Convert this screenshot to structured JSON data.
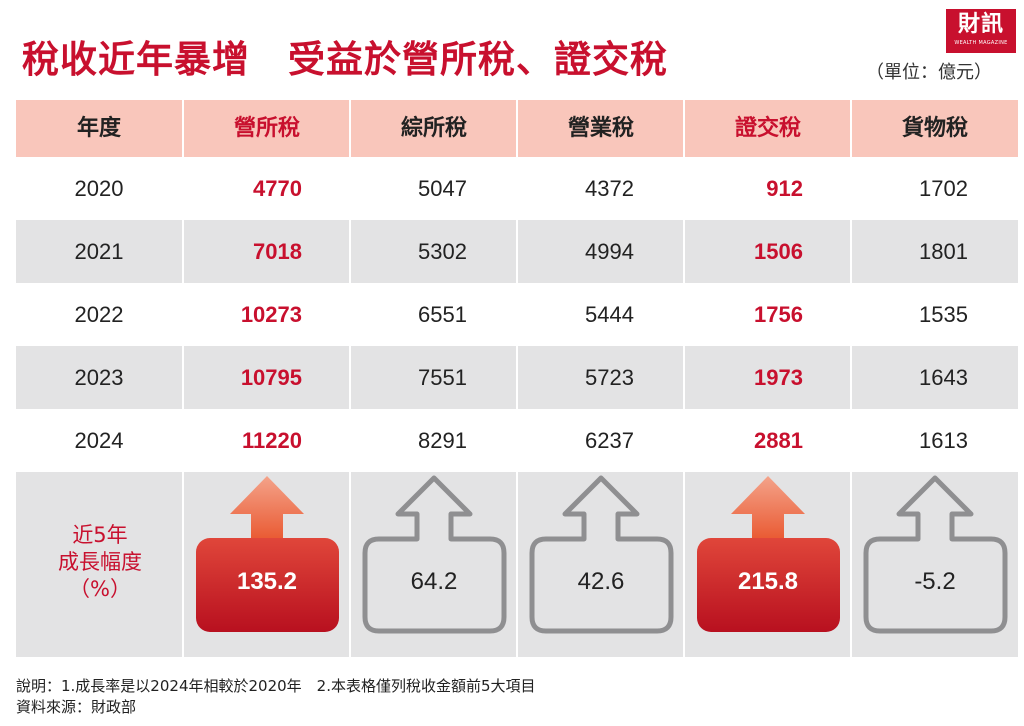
{
  "title_part1": "稅收近年暴增",
  "title_part2": "受益於營所稅、證交稅",
  "unit": "（單位：億元）",
  "logo": {
    "main": "財訊",
    "sub": "WEALTH MAGAZINE"
  },
  "colors": {
    "accent": "#c8102e",
    "header_bg": "#f9c6bb",
    "row_grey": "#e3e3e4"
  },
  "header": [
    "年度",
    "營所稅",
    "綜所稅",
    "營業稅",
    "證交稅",
    "貨物稅"
  ],
  "rows": [
    {
      "year": "2020",
      "v": [
        "4770",
        "5047",
        "4372",
        "912",
        "1702"
      ]
    },
    {
      "year": "2021",
      "v": [
        "7018",
        "5302",
        "4994",
        "1506",
        "1801"
      ]
    },
    {
      "year": "2022",
      "v": [
        "10273",
        "6551",
        "5444",
        "1756",
        "1535"
      ]
    },
    {
      "year": "2023",
      "v": [
        "10795",
        "7551",
        "5723",
        "1973",
        "1643"
      ]
    },
    {
      "year": "2024",
      "v": [
        "11220",
        "8291",
        "6237",
        "2881",
        "1613"
      ]
    }
  ],
  "growth_label": [
    "近5年",
    "成長幅度",
    "（%）"
  ],
  "growth": [
    "135.2",
    "64.2",
    "42.6",
    "215.8",
    "-5.2"
  ],
  "notes": [
    "說明：1.成長率是以2024年相較於2020年　2.本表格僅列稅收金額前5大項目",
    "資料來源：財政部"
  ],
  "chart_data": {
    "type": "table",
    "title": "稅收近年暴增　受益於營所稅、證交稅",
    "unit": "（單位：億元）",
    "columns": [
      "年度",
      "營所稅",
      "綜所稅",
      "營業稅",
      "證交稅",
      "貨物稅"
    ],
    "x": [
      2020,
      2021,
      2022,
      2023,
      2024
    ],
    "series": [
      {
        "name": "營所稅",
        "values": [
          4770,
          7018,
          10273,
          10795,
          11220
        ]
      },
      {
        "name": "綜所稅",
        "values": [
          5047,
          5302,
          6551,
          7551,
          8291
        ]
      },
      {
        "name": "營業稅",
        "values": [
          4372,
          4994,
          5444,
          5723,
          6237
        ]
      },
      {
        "name": "證交稅",
        "values": [
          912,
          1506,
          1756,
          1973,
          2881
        ]
      },
      {
        "name": "貨物稅",
        "values": [
          1702,
          1801,
          1535,
          1643,
          1613
        ]
      }
    ],
    "growth_5yr_pct": [
      135.2,
      64.2,
      42.6,
      215.8,
      -5.2
    ],
    "highlighted": [
      "營所稅",
      "證交稅"
    ]
  }
}
